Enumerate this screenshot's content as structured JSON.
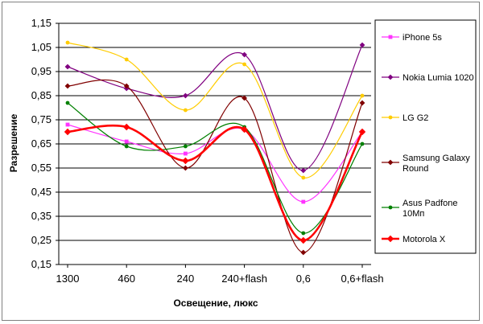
{
  "chart_data": {
    "type": "line",
    "xlabel": "Освещение, люкс",
    "ylabel": "Разрешение",
    "categories": [
      "1300",
      "460",
      "240",
      "240+flash",
      "0,6",
      "0,6+flash"
    ],
    "ylim": [
      0.15,
      1.15
    ],
    "yticks": [
      "0,15",
      "0,25",
      "0,35",
      "0,45",
      "0,55",
      "0,65",
      "0,75",
      "0,85",
      "0,95",
      "1,05",
      "1,15"
    ],
    "ytick_values": [
      0.15,
      0.25,
      0.35,
      0.45,
      0.55,
      0.65,
      0.75,
      0.85,
      0.95,
      1.05,
      1.15
    ],
    "grid": "horizontal",
    "legend_position": "right",
    "smooth": true,
    "series": [
      {
        "name": "iPhone 5s",
        "color": "#ff33ff",
        "marker": "square",
        "values": [
          0.73,
          0.66,
          0.61,
          0.71,
          0.41,
          0.7
        ]
      },
      {
        "name": "Nokia Lumia 1020",
        "color": "#800080",
        "marker": "diamond",
        "values": [
          0.97,
          0.88,
          0.85,
          1.02,
          0.54,
          1.06
        ]
      },
      {
        "name": "LG G2",
        "color": "#ffcc00",
        "marker": "circle",
        "values": [
          1.07,
          1.0,
          0.79,
          0.98,
          0.51,
          0.85
        ]
      },
      {
        "name": "Samsung Galaxy Round",
        "color": "#800000",
        "marker": "diamond",
        "values": [
          0.89,
          0.89,
          0.55,
          0.84,
          0.2,
          0.82
        ]
      },
      {
        "name": "Asus Padfone 10Мп",
        "color": "#008000",
        "marker": "circle",
        "values": [
          0.82,
          0.64,
          0.64,
          0.72,
          0.28,
          0.65
        ]
      },
      {
        "name": "Motorola X",
        "color": "#ff0000",
        "marker": "diamond",
        "bold": true,
        "values": [
          0.7,
          0.72,
          0.58,
          0.71,
          0.25,
          0.7
        ]
      }
    ],
    "legend_lines": [
      [
        "iPhone 5s"
      ],
      [
        "Nokia Lumia 1020"
      ],
      [
        "LG G2"
      ],
      [
        "Samsung Galaxy",
        "Round"
      ],
      [
        "Asus Padfone",
        "10Мп"
      ],
      [
        "Motorola X"
      ]
    ]
  }
}
